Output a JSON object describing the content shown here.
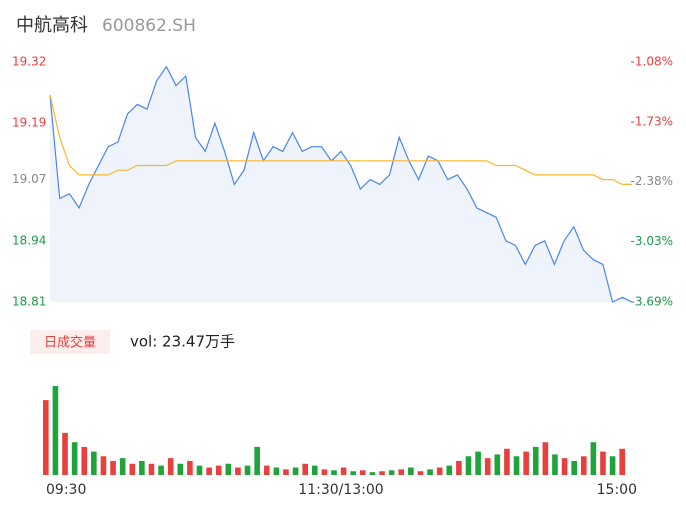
{
  "chart_data": [
    {
      "type": "line",
      "title": "中航高科",
      "subtitle": "600862.SH",
      "xlim": [
        0,
        240
      ],
      "xticks": [
        {
          "value": 0,
          "label": "09:30"
        },
        {
          "value": 120,
          "label": "11:30/13:00"
        },
        {
          "value": 240,
          "label": "15:00"
        }
      ],
      "ylim": [
        18.81,
        19.32
      ],
      "yticks": [
        19.32,
        19.19,
        19.07,
        18.94,
        18.81
      ],
      "y2lim": [
        -3.69,
        -1.08
      ],
      "y2ticks": [
        {
          "value": -1.08,
          "label": "-1.08%"
        },
        {
          "value": -1.73,
          "label": "-1.73%"
        },
        {
          "value": -2.38,
          "label": "-2.38%"
        },
        {
          "value": -3.03,
          "label": "-3.03%"
        },
        {
          "value": -3.69,
          "label": "-3.69%"
        }
      ],
      "ytick_colors": [
        "#e8403c",
        "#e8403c",
        "#888888",
        "#1a9b4b",
        "#1a9b4b"
      ],
      "x": [
        0,
        4,
        8,
        12,
        16,
        20,
        24,
        28,
        32,
        36,
        40,
        44,
        48,
        52,
        56,
        60,
        64,
        68,
        72,
        76,
        80,
        84,
        88,
        92,
        96,
        100,
        104,
        108,
        112,
        116,
        120,
        124,
        128,
        132,
        136,
        140,
        144,
        148,
        152,
        156,
        160,
        164,
        168,
        172,
        176,
        180,
        184,
        188,
        192,
        196,
        200,
        204,
        208,
        212,
        216,
        220,
        224,
        228,
        232,
        236,
        240
      ],
      "series": [
        {
          "name": "price",
          "color": "#4a86e8",
          "fill": "#eef3fc",
          "values": [
            19.25,
            19.03,
            19.04,
            19.01,
            19.06,
            19.1,
            19.14,
            19.15,
            19.21,
            19.23,
            19.22,
            19.28,
            19.31,
            19.27,
            19.29,
            19.16,
            19.13,
            19.19,
            19.13,
            19.06,
            19.09,
            19.17,
            19.11,
            19.14,
            19.13,
            19.17,
            19.13,
            19.14,
            19.14,
            19.11,
            19.13,
            19.1,
            19.05,
            19.07,
            19.06,
            19.08,
            19.16,
            19.11,
            19.07,
            19.12,
            19.11,
            19.07,
            19.08,
            19.05,
            19.01,
            19.0,
            18.99,
            18.94,
            18.93,
            18.89,
            18.93,
            18.94,
            18.89,
            18.94,
            18.97,
            18.92,
            18.9,
            18.89,
            18.81,
            18.82,
            18.81
          ]
        },
        {
          "name": "average",
          "color": "#f5b82e",
          "values": [
            19.25,
            19.16,
            19.1,
            19.08,
            19.08,
            19.08,
            19.08,
            19.09,
            19.09,
            19.1,
            19.1,
            19.1,
            19.1,
            19.11,
            19.11,
            19.11,
            19.11,
            19.11,
            19.11,
            19.11,
            19.11,
            19.11,
            19.11,
            19.11,
            19.11,
            19.11,
            19.11,
            19.11,
            19.11,
            19.11,
            19.11,
            19.11,
            19.11,
            19.11,
            19.11,
            19.11,
            19.11,
            19.11,
            19.11,
            19.11,
            19.11,
            19.11,
            19.11,
            19.11,
            19.11,
            19.11,
            19.1,
            19.1,
            19.1,
            19.09,
            19.08,
            19.08,
            19.08,
            19.08,
            19.08,
            19.08,
            19.08,
            19.07,
            19.07,
            19.06,
            19.06
          ]
        }
      ]
    },
    {
      "type": "bar",
      "title": "日成交量",
      "annotation": "vol: 23.47万手",
      "ylim": [
        0,
        110
      ],
      "values": [
        80,
        95,
        45,
        35,
        30,
        25,
        20,
        15,
        18,
        12,
        15,
        12,
        10,
        18,
        12,
        15,
        10,
        8,
        10,
        12,
        8,
        10,
        30,
        10,
        8,
        6,
        8,
        12,
        10,
        6,
        5,
        8,
        4,
        5,
        3,
        4,
        5,
        6,
        8,
        4,
        6,
        8,
        10,
        15,
        20,
        25,
        18,
        22,
        28,
        20,
        25,
        30,
        35,
        22,
        18,
        15,
        20,
        35,
        25,
        20,
        28
      ],
      "colors": [
        "#e8403c",
        "#1fa33a",
        "#e8403c",
        "#1fa33a",
        "#e8403c",
        "#1fa33a",
        "#e8403c",
        "#e8403c",
        "#1fa33a",
        "#e8403c",
        "#1fa33a",
        "#e8403c",
        "#1fa33a",
        "#e8403c",
        "#1fa33a",
        "#e8403c",
        "#1fa33a",
        "#e8403c",
        "#e8403c",
        "#1fa33a",
        "#e8403c",
        "#1fa33a",
        "#1fa33a",
        "#e8403c",
        "#1fa33a",
        "#e8403c",
        "#1fa33a",
        "#e8403c",
        "#1fa33a",
        "#e8403c",
        "#1fa33a",
        "#e8403c",
        "#1fa33a",
        "#e8403c",
        "#1fa33a",
        "#e8403c",
        "#1fa33a",
        "#e8403c",
        "#1fa33a",
        "#e8403c",
        "#1fa33a",
        "#e8403c",
        "#1fa33a",
        "#e8403c",
        "#1fa33a",
        "#1fa33a",
        "#e8403c",
        "#1fa33a",
        "#e8403c",
        "#1fa33a",
        "#e8403c",
        "#1fa33a",
        "#e8403c",
        "#1fa33a",
        "#e8403c",
        "#1fa33a",
        "#e8403c",
        "#1fa33a",
        "#e8403c",
        "#1fa33a",
        "#e8403c"
      ]
    }
  ]
}
